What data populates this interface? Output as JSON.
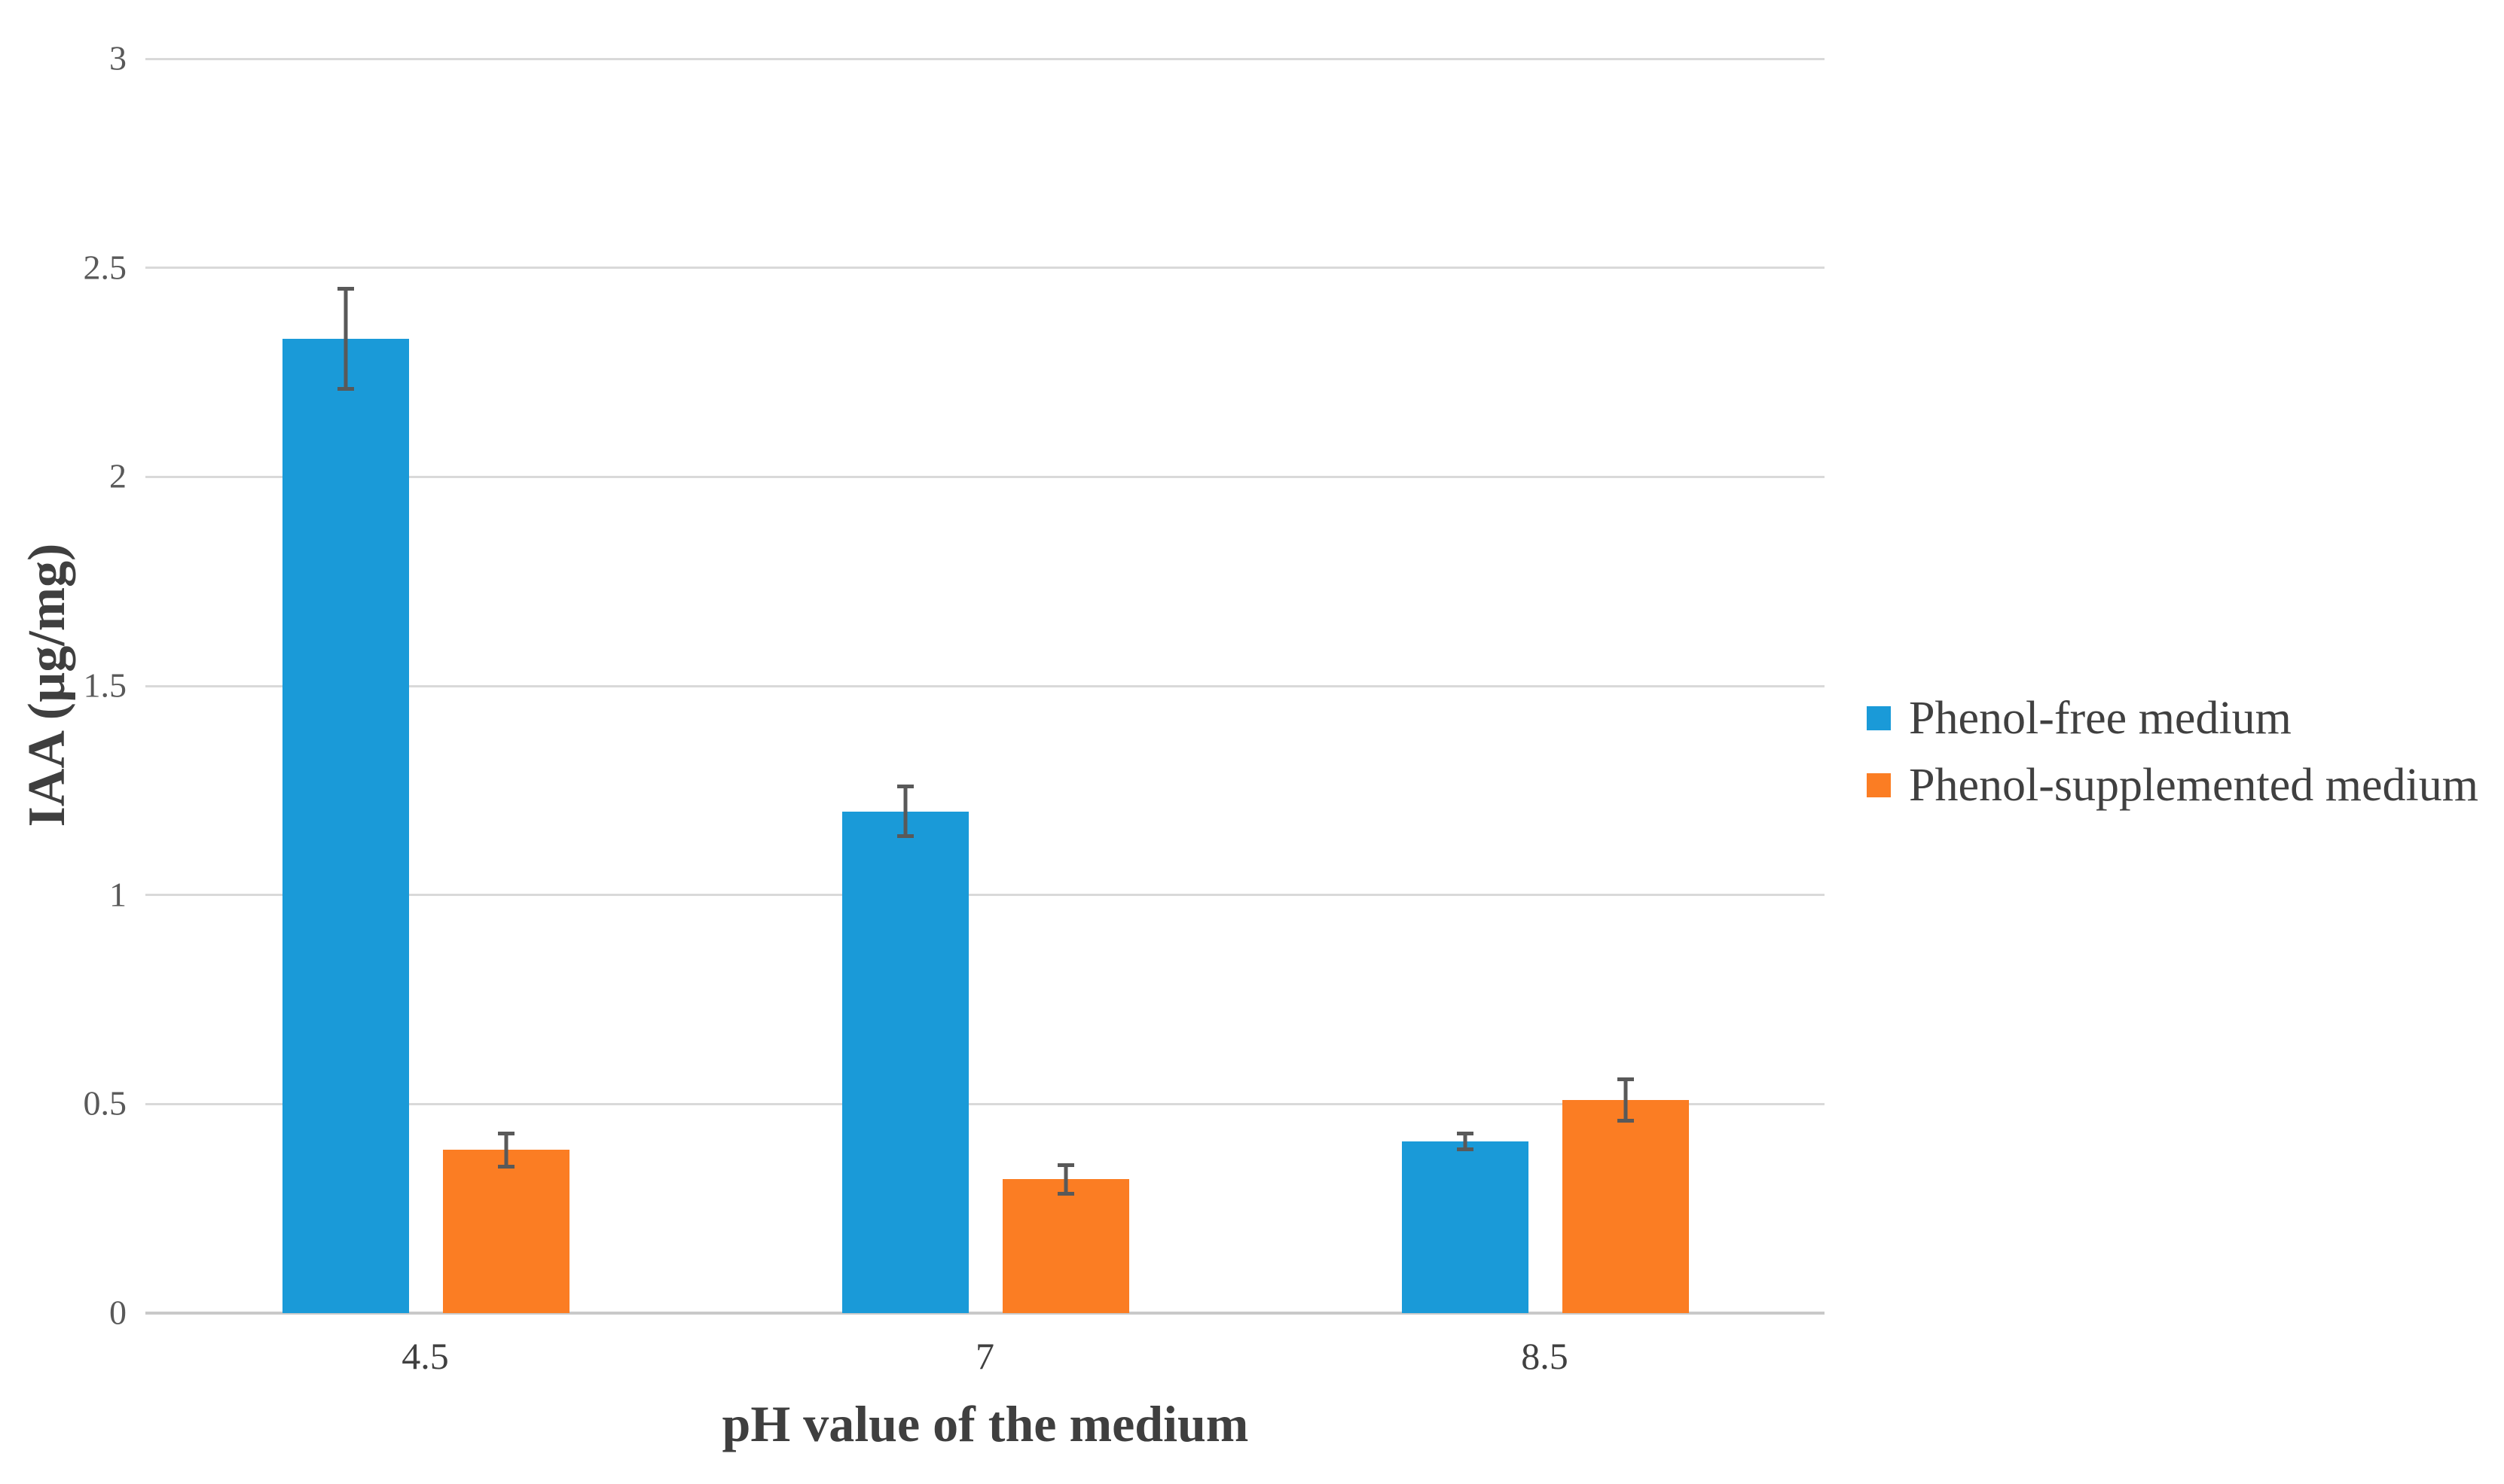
{
  "figure": {
    "background": "#FFFFFF"
  },
  "chart_data": {
    "type": "bar",
    "title": "",
    "xlabel": "pH value of the medium",
    "ylabel": "IAA (µg/mg)",
    "categories": [
      "4.5",
      "7",
      "8.5"
    ],
    "series": [
      {
        "name": "Phenol-free medium",
        "color": "#1A9AD8",
        "values": [
          2.33,
          1.2,
          0.41
        ],
        "error_bars": [
          0.12,
          0.06,
          0.02
        ]
      },
      {
        "name": "Phenol-supplemented medium",
        "color": "#FB7D23",
        "values": [
          0.39,
          0.32,
          0.51
        ],
        "error_bars": [
          0.04,
          0.035,
          0.05
        ]
      }
    ],
    "ylim": [
      0,
      3
    ],
    "yticks": [
      "0",
      "0.5",
      "1",
      "1.5",
      "2",
      "2.5",
      "3"
    ],
    "grid": "horizontal",
    "gridline_color": "#D9D9D9",
    "axis_line_color": "#C9C9C9",
    "error_bar_color": "#595959",
    "tick_label_color": "#595959",
    "category_label_color": "#404040",
    "axis_title_color": "#3F3F3F",
    "legend_position": "right"
  }
}
